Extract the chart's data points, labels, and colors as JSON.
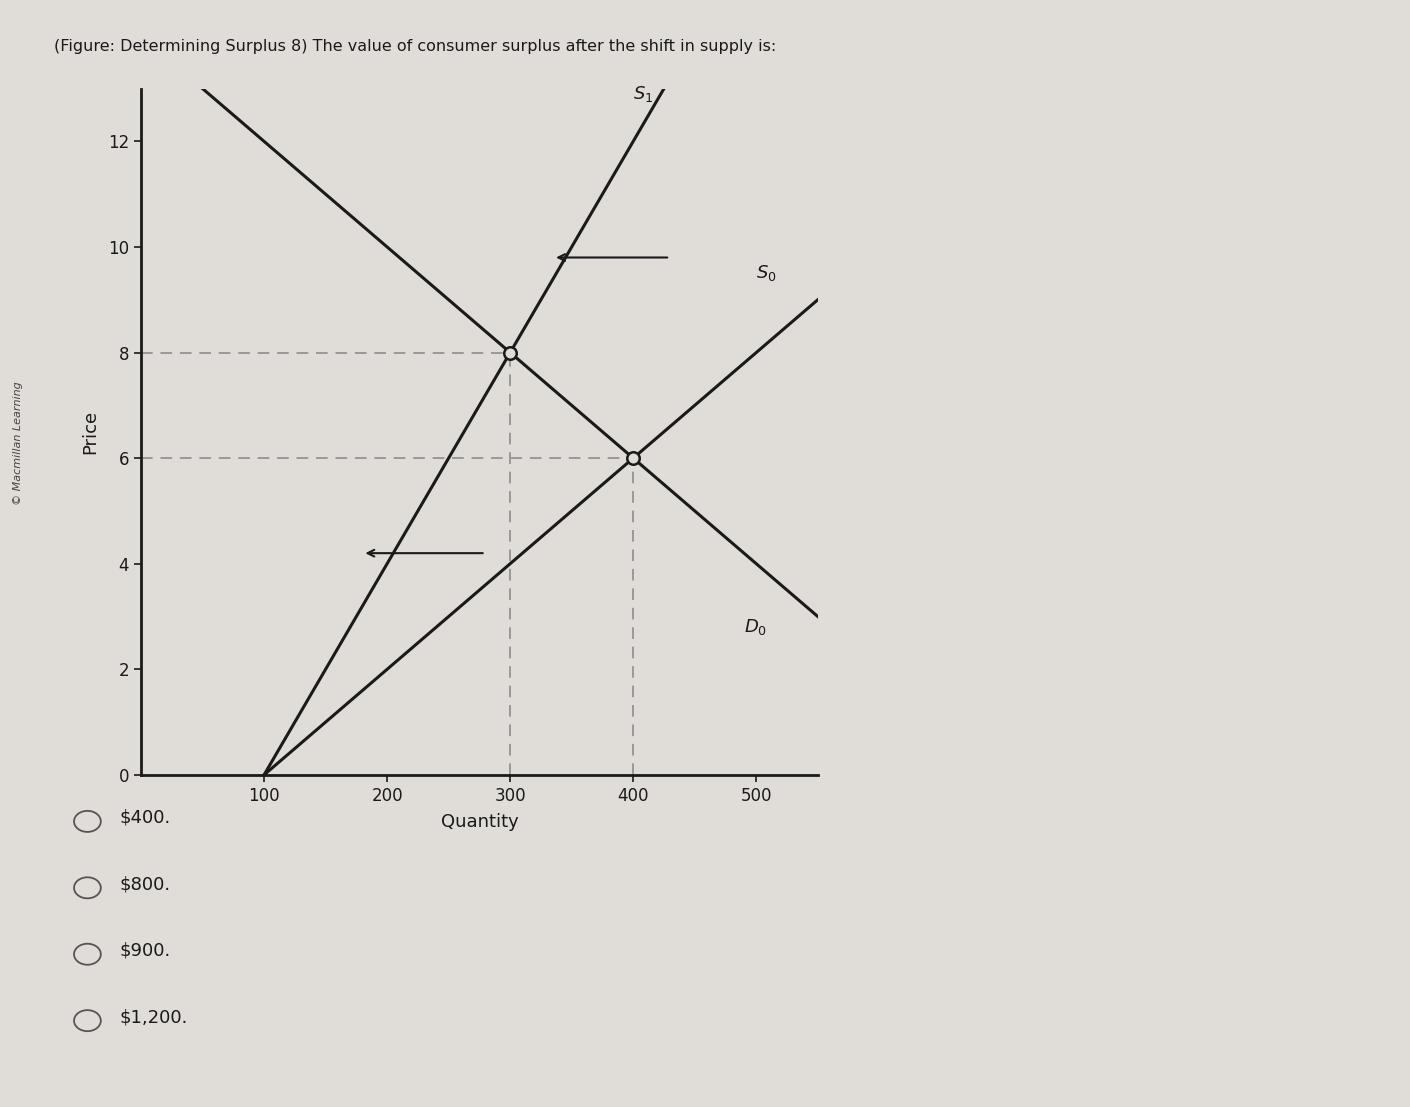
{
  "title": "(Figure: Determining Surplus 8) The value of consumer surplus after the shift in supply is:",
  "ylabel": "Price",
  "xlabel": "Quantity",
  "bg_color": "#e0dcd8",
  "line_color": "#1a1a1a",
  "dashed_color": "#999999",
  "x_ticks": [
    100,
    200,
    300,
    400,
    500
  ],
  "y_ticks": [
    0,
    2,
    4,
    6,
    8,
    10,
    12
  ],
  "xlim": [
    0,
    550
  ],
  "ylim": [
    0,
    13
  ],
  "label_S1": "$S_1$",
  "label_S0": "$S_0$",
  "label_D0": "$D_0$",
  "choices": [
    "$400.",
    "$800.",
    "$900.",
    "$1,200."
  ],
  "sidebar_text": "© Macmillan Learning"
}
